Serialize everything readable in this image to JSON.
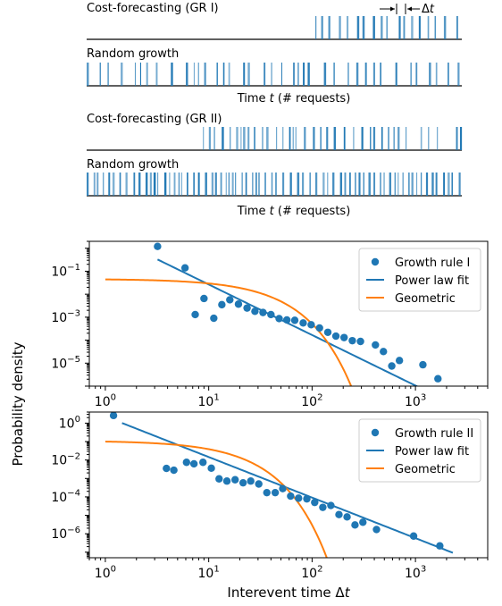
{
  "colors": {
    "blue": "#1f77b4",
    "orange": "#ff7f0e",
    "axis": "#000000"
  },
  "raster": {
    "panels": [
      {
        "label": "Cost-forecasting (GR I)",
        "start": 0.61,
        "density": 0.55,
        "clustered": true
      },
      {
        "label": "Random growth",
        "start": 0.0,
        "density": 0.45,
        "clustered": false
      },
      {
        "label": "Cost-forecasting (GR II)",
        "start": 0.31,
        "density": 0.8,
        "clustered": true
      },
      {
        "label": "Random growth",
        "start": 0.0,
        "density": 1.0,
        "clustered": false
      }
    ],
    "xlabel": "Time t (# requests)",
    "interval_label": "Δt"
  },
  "chart_data": [
    {
      "type": "scatter",
      "xscale": "log",
      "yscale": "log",
      "xlim": [
        0.7,
        5000
      ],
      "ylim": [
        1e-06,
        2
      ],
      "xticks": [
        1,
        10,
        100,
        1000
      ],
      "xtick_labels": [
        "10^0",
        "10^1",
        "10^2",
        "10^3"
      ],
      "yticks": [
        1e-05,
        0.001,
        0.1
      ],
      "ytick_labels": [
        "10^-5",
        "10^-3",
        "10^-1"
      ],
      "legend": [
        "Growth rule I",
        "Power law fit",
        "Geometric"
      ],
      "legend_position": "upper right",
      "series": [
        {
          "name": "Growth rule I",
          "kind": "points",
          "x": [
            3.2,
            5.9,
            7.4,
            9.0,
            11.2,
            13.4,
            16.0,
            19.4,
            23.5,
            28.0,
            33.5,
            40.0,
            48.0,
            57.0,
            68.0,
            82.0,
            98.0,
            118.0,
            142.0,
            170.0,
            204.0,
            245.0,
            294.0,
            410.0,
            490.0,
            590.0,
            700.0,
            1180.0,
            1650.0
          ],
          "y": [
            1.2,
            0.14,
            0.0013,
            0.0065,
            0.0009,
            0.0035,
            0.0057,
            0.0037,
            0.0025,
            0.0018,
            0.0016,
            0.0013,
            0.00087,
            0.00076,
            0.00073,
            0.00056,
            0.00047,
            0.00034,
            0.00022,
            0.00015,
            0.00013,
            9.5e-05,
            8.8e-05,
            6.2e-05,
            3.2e-05,
            7.5e-06,
            1.3e-05,
            8.5e-06,
            2.1e-06
          ]
        },
        {
          "name": "Power law fit",
          "kind": "power",
          "amplitude": 4.2,
          "exponent": -2.2,
          "x_range": [
            3.2,
            2400
          ]
        },
        {
          "name": "Geometric",
          "kind": "geometric",
          "p": 0.044,
          "x_range": [
            1,
            280
          ]
        }
      ]
    },
    {
      "type": "scatter",
      "xscale": "log",
      "yscale": "log",
      "xlim": [
        0.7,
        5000
      ],
      "ylim": [
        5e-08,
        4
      ],
      "xticks": [
        1,
        10,
        100,
        1000
      ],
      "xtick_labels": [
        "10^0",
        "10^1",
        "10^2",
        "10^3"
      ],
      "yticks": [
        1e-06,
        0.0001,
        0.01,
        1
      ],
      "ytick_labels": [
        "10^-6",
        "10^-4",
        "10^-2",
        "10^0"
      ],
      "xlabel": "Interevent time Δt",
      "legend": [
        "Growth rule II",
        "Power law fit",
        "Geometric"
      ],
      "legend_position": "upper right",
      "series": [
        {
          "name": "Growth rule II",
          "kind": "points",
          "x": [
            1.2,
            3.9,
            4.6,
            6.1,
            7.2,
            8.8,
            10.6,
            12.6,
            15.0,
            18.0,
            21.5,
            25.5,
            30.5,
            36.5,
            44.0,
            52.0,
            62.0,
            74.0,
            89.0,
            106.0,
            127.0,
            152.0,
            182.0,
            218.0,
            260.0,
            310.0,
            420.0,
            960.0,
            1720.0
          ],
          "y": [
            2.6,
            0.0035,
            0.0028,
            0.0075,
            0.0062,
            0.0075,
            0.0036,
            0.00095,
            0.00072,
            0.00085,
            0.00058,
            0.00072,
            0.0005,
            0.00017,
            0.00017,
            0.00028,
            0.00011,
            8.5e-05,
            7.8e-05,
            5e-05,
            2.7e-05,
            3.4e-05,
            1.1e-05,
            8.2e-06,
            3e-06,
            4.2e-06,
            1.7e-06,
            7.5e-07,
            2.2e-07
          ]
        },
        {
          "name": "Power law fit",
          "kind": "power",
          "amplitude": 2.3,
          "exponent": -2.2,
          "x_range": [
            1.45,
            2300
          ]
        },
        {
          "name": "Geometric",
          "kind": "geometric",
          "p": 0.1,
          "x_range": [
            1,
            140
          ]
        }
      ]
    }
  ],
  "shared": {
    "ylabel": "Probability density"
  }
}
